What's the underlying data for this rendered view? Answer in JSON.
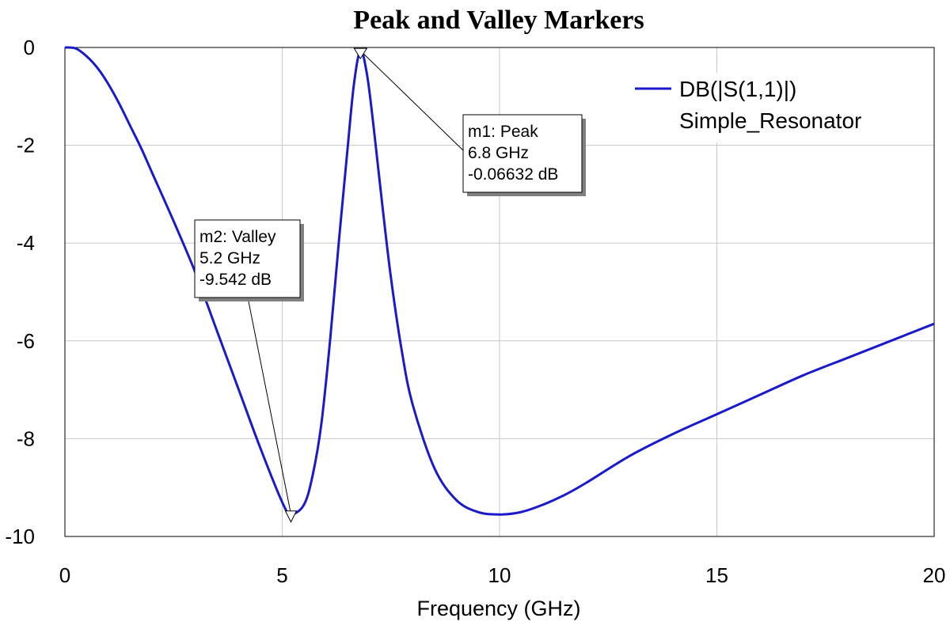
{
  "chart_data": {
    "type": "line",
    "title": "Peak and Valley Markers",
    "xlabel": "Frequency (GHz)",
    "ylabel": "",
    "xlim": [
      0,
      20
    ],
    "ylim": [
      -10,
      0
    ],
    "xticks": [
      0,
      5,
      10,
      15,
      20
    ],
    "yticks": [
      0,
      -2,
      -4,
      -6,
      -8,
      -10
    ],
    "grid": true,
    "legend_position": "top-right",
    "series": [
      {
        "name": "DB(|S(1,1)|)",
        "subname": "Simple_Resonator",
        "color": "#1a1acc",
        "points": [
          [
            0,
            0
          ],
          [
            0.25,
            -0.02
          ],
          [
            0.5,
            -0.18
          ],
          [
            0.75,
            -0.42
          ],
          [
            1,
            -0.75
          ],
          [
            1.25,
            -1.15
          ],
          [
            1.5,
            -1.6
          ],
          [
            1.75,
            -2.05
          ],
          [
            2,
            -2.55
          ],
          [
            2.5,
            -3.55
          ],
          [
            3,
            -4.6
          ],
          [
            3.5,
            -5.8
          ],
          [
            4,
            -7.0
          ],
          [
            4.5,
            -8.2
          ],
          [
            5,
            -9.3
          ],
          [
            5.2,
            -9.542
          ],
          [
            5.5,
            -9.35
          ],
          [
            5.7,
            -8.75
          ],
          [
            5.9,
            -7.7
          ],
          [
            6.1,
            -6.0
          ],
          [
            6.3,
            -4.0
          ],
          [
            6.5,
            -2.1
          ],
          [
            6.65,
            -0.75
          ],
          [
            6.8,
            -0.06632
          ],
          [
            6.95,
            -0.55
          ],
          [
            7.1,
            -1.6
          ],
          [
            7.3,
            -3.2
          ],
          [
            7.5,
            -4.7
          ],
          [
            7.75,
            -6.2
          ],
          [
            8,
            -7.3
          ],
          [
            8.5,
            -8.6
          ],
          [
            9,
            -9.25
          ],
          [
            9.5,
            -9.5
          ],
          [
            10,
            -9.55
          ],
          [
            10.5,
            -9.5
          ],
          [
            11,
            -9.35
          ],
          [
            11.5,
            -9.15
          ],
          [
            12,
            -8.9
          ],
          [
            13,
            -8.35
          ],
          [
            14,
            -7.9
          ],
          [
            15,
            -7.5
          ],
          [
            16,
            -7.1
          ],
          [
            17,
            -6.7
          ],
          [
            18,
            -6.35
          ],
          [
            19,
            -6.0
          ],
          [
            20,
            -5.65
          ]
        ]
      }
    ],
    "markers": [
      {
        "id": "m1",
        "kind": "Peak",
        "label": "m1: Peak",
        "freq_text": "6.8 GHz",
        "value_text": "-0.06632 dB",
        "x": 6.8,
        "y": -0.06632
      },
      {
        "id": "m2",
        "kind": "Valley",
        "label": "m2: Valley",
        "freq_text": "5.2 GHz",
        "value_text": "-9.542 dB",
        "x": 5.2,
        "y": -9.542
      }
    ]
  }
}
